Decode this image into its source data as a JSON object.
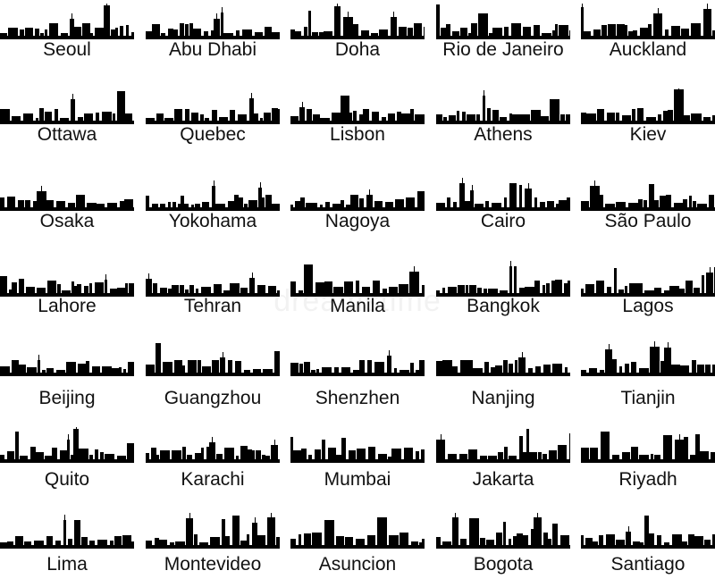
{
  "colors": {
    "silhouette": "#000000",
    "label": "#111111",
    "background": "#ffffff"
  },
  "icon": "city-skyline-silhouette",
  "cities": [
    "Seoul",
    "Abu Dhabi",
    "Doha",
    "Rio de Janeiro",
    "Auckland",
    "Ottawa",
    "Quebec",
    "Lisbon",
    "Athens",
    "Kiev",
    "Osaka",
    "Yokohama",
    "Nagoya",
    "Cairo",
    "São Paulo",
    "Lahore",
    "Tehran",
    "Manila",
    "Bangkok",
    "Lagos",
    "Beijing",
    "Guangzhou",
    "Shenzhen",
    "Nanjing",
    "Tianjin",
    "Quito",
    "Karachi",
    "Mumbai",
    "Jakarta",
    "Riyadh",
    "Lima",
    "Montevideo",
    "Asuncion",
    "Bogota",
    "Santiago"
  ],
  "watermark": "dreamstime"
}
